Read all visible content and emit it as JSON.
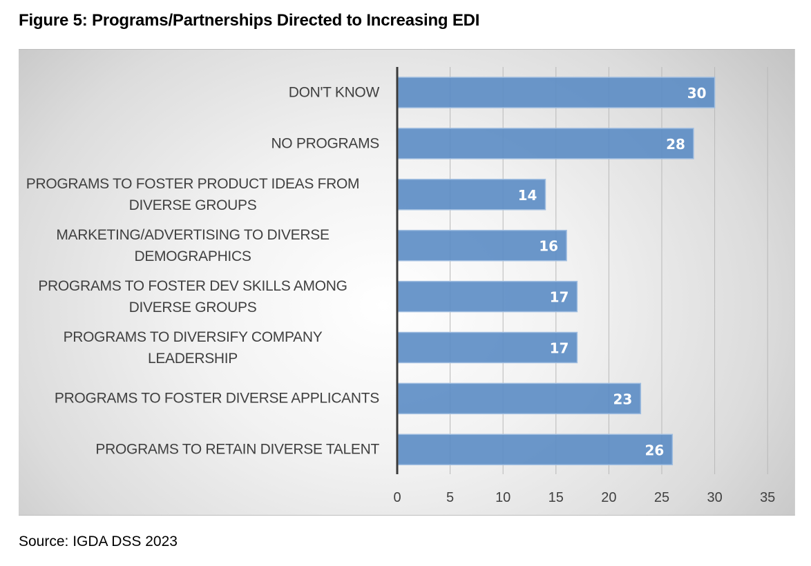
{
  "figure": {
    "title": "Figure 5: Programs/Partnerships Directed to Increasing EDI",
    "source": "Source: IGDA DSS 2023"
  },
  "colors": {
    "bar_fill": "#5b8cc4",
    "bar_edge": "#9fbde0",
    "axis": "#3a3a3a",
    "grid": "#b8b8b8",
    "label_text": "#404040",
    "data_label": "#ffffff"
  },
  "chart_data": {
    "type": "bar",
    "orientation": "horizontal",
    "title": "Figure 5: Programs/Partnerships Directed to Increasing EDI",
    "xlabel": "",
    "ylabel": "",
    "categories": [
      "DON'T KNOW",
      "NO PROGRAMS",
      "PROGRAMS TO FOSTER PRODUCT IDEAS FROM DIVERSE GROUPS",
      "MARKETING/ADVERTISING TO DIVERSE DEMOGRAPHICS",
      "PROGRAMS TO FOSTER DEV SKILLS AMONG DIVERSE GROUPS",
      "PROGRAMS TO DIVERSIFY COMPANY LEADERSHIP",
      "PROGRAMS TO FOSTER DIVERSE APPLICANTS",
      "PROGRAMS TO RETAIN DIVERSE TALENT"
    ],
    "category_lines": [
      [
        "DON'T KNOW"
      ],
      [
        "NO PROGRAMS"
      ],
      [
        "PROGRAMS TO FOSTER PRODUCT IDEAS FROM",
        "DIVERSE GROUPS"
      ],
      [
        "MARKETING/ADVERTISING TO DIVERSE",
        "DEMOGRAPHICS"
      ],
      [
        "PROGRAMS TO FOSTER DEV SKILLS AMONG",
        "DIVERSE GROUPS"
      ],
      [
        "PROGRAMS TO DIVERSIFY COMPANY",
        "LEADERSHIP"
      ],
      [
        "PROGRAMS TO FOSTER DIVERSE APPLICANTS"
      ],
      [
        "PROGRAMS TO RETAIN DIVERSE TALENT"
      ]
    ],
    "values": [
      30,
      28,
      14,
      16,
      17,
      17,
      23,
      26
    ],
    "xlim": [
      0,
      35
    ],
    "x_ticks": [
      0,
      5,
      10,
      15,
      20,
      25,
      30,
      35
    ],
    "x_tick_labels": [
      "0",
      "5",
      "10",
      "15",
      "20",
      "25",
      "30",
      "35"
    ],
    "grid": "vertical",
    "legend": "none",
    "data_labels": "inside-end"
  }
}
